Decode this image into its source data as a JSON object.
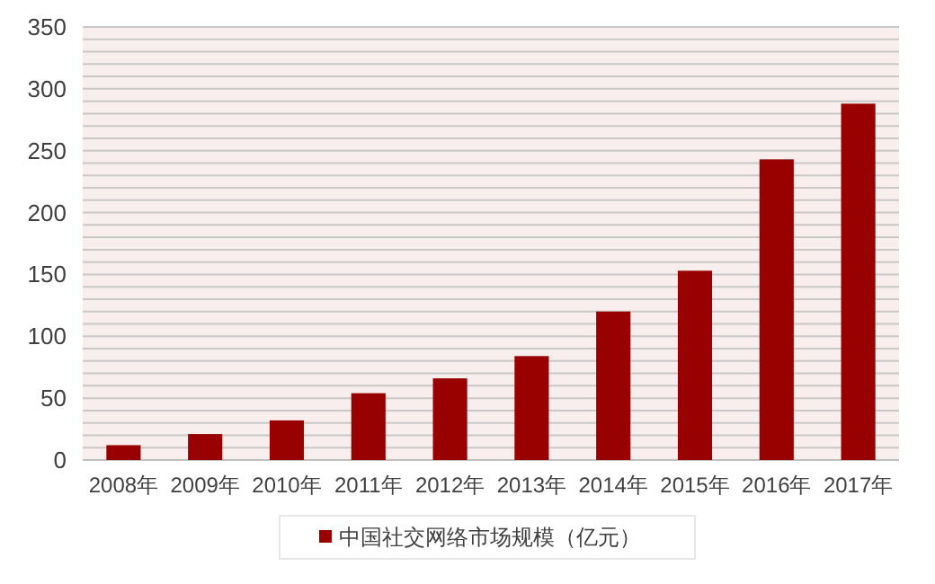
{
  "chart_data": {
    "type": "bar",
    "categories": [
      "2008年",
      "2009年",
      "2010年",
      "2011年",
      "2012年",
      "2013年",
      "2014年",
      "2015年",
      "2016年",
      "2017年"
    ],
    "series": [
      {
        "name": "中国社交网络市场规模（亿元）",
        "color": "#990000",
        "values": [
          12,
          21,
          32,
          54,
          66,
          84,
          120,
          153,
          243,
          288
        ]
      }
    ],
    "ylim": [
      0,
      350
    ],
    "yticks": [
      0,
      {
        "value": 10,
        "label": null
      },
      {
        "value": 20,
        "label": null
      },
      {
        "value": 30,
        "label": null
      },
      {
        "value": 40,
        "label": null
      },
      50,
      {
        "value": 60,
        "label": null
      },
      {
        "value": 70,
        "label": null
      },
      {
        "value": 80,
        "label": null
      },
      {
        "value": 90,
        "label": null
      },
      100,
      {
        "value": 110,
        "label": null
      },
      {
        "value": 120,
        "label": null
      },
      {
        "value": 130,
        "label": null
      },
      {
        "value": 140,
        "label": null
      },
      150,
      {
        "value": 160,
        "label": null
      },
      {
        "value": 170,
        "label": null
      },
      {
        "value": 180,
        "label": null
      },
      {
        "value": 190,
        "label": null
      },
      200,
      {
        "value": 210,
        "label": null
      },
      {
        "value": 220,
        "label": null
      },
      {
        "value": 230,
        "label": null
      },
      {
        "value": 240,
        "label": null
      },
      250,
      {
        "value": 260,
        "label": null
      },
      {
        "value": 270,
        "label": null
      },
      {
        "value": 280,
        "label": null
      },
      {
        "value": 290,
        "label": null
      },
      300,
      {
        "value": 310,
        "label": null
      },
      {
        "value": 320,
        "label": null
      },
      {
        "value": 330,
        "label": null
      },
      {
        "value": 340,
        "label": null
      },
      350
    ],
    "grid": "y",
    "legend": "bottom"
  }
}
